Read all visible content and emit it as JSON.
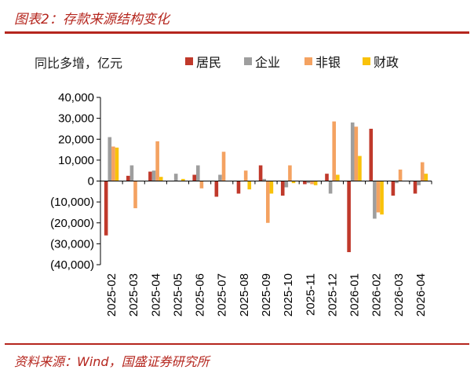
{
  "header": {
    "title": "图表2：存款来源结构变化"
  },
  "footer": {
    "source": "资料来源：Wind，国盛证券研究所"
  },
  "chart_data": {
    "type": "bar",
    "unit_label": "同比多增，亿元",
    "categories": [
      "2025-02",
      "2025-03",
      "2025-04",
      "2025-05",
      "2025-06",
      "2025-07",
      "2025-08",
      "2025-09",
      "2025-10",
      "2025-11",
      "2025-12",
      "2026-01",
      "2026-02",
      "2026-03",
      "2026-04"
    ],
    "ylim": [
      -40000,
      40000
    ],
    "yticks": [
      {
        "value": 40000,
        "label": "40,000"
      },
      {
        "value": 30000,
        "label": "30,000"
      },
      {
        "value": 20000,
        "label": "20,000"
      },
      {
        "value": 10000,
        "label": "10,000"
      },
      {
        "value": 0,
        "label": "0"
      },
      {
        "value": -10000,
        "label": "(10,000)"
      },
      {
        "value": -20000,
        "label": "(20,000)"
      },
      {
        "value": -30000,
        "label": "(30,000)"
      },
      {
        "value": -40000,
        "label": "(40,000)"
      }
    ],
    "legend_position": "top",
    "grid": false,
    "series": [
      {
        "name": "居民",
        "color": "#c0392b",
        "values": [
          -26000,
          2500,
          4500,
          0,
          3000,
          -7500,
          -6000,
          7500,
          -7000,
          -1500,
          3500,
          -34000,
          25000,
          -7000,
          -6000
        ]
      },
      {
        "name": "企业",
        "color": "#9e9e9e",
        "values": [
          21000,
          7500,
          5000,
          3500,
          7500,
          3000,
          0,
          1000,
          -3000,
          -1000,
          -6000,
          28000,
          -18000,
          -1000,
          -2000
        ]
      },
      {
        "name": "非银",
        "color": "#f4a261",
        "values": [
          16500,
          -13000,
          19000,
          0,
          -3500,
          14000,
          5000,
          -20000,
          7500,
          -1500,
          28500,
          26000,
          -15000,
          5500,
          9000
        ]
      },
      {
        "name": "财政",
        "color": "#f9c20a",
        "values": [
          16000,
          0,
          2000,
          1000,
          0,
          0,
          -4000,
          -6000,
          -1000,
          -2000,
          3000,
          12000,
          -16000,
          0,
          3500
        ]
      }
    ]
  }
}
